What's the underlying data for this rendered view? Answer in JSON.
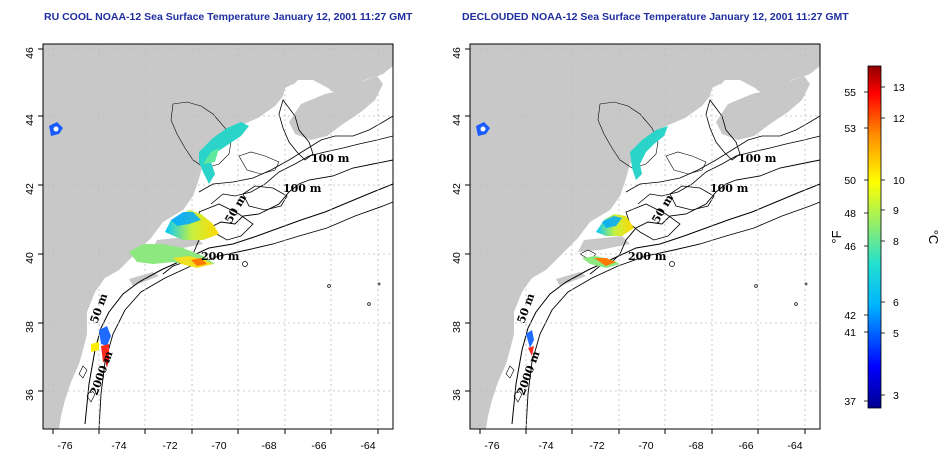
{
  "titles": {
    "left": "RU COOL NOAA-12 Sea Surface Temperature January 12, 2001 11:27 GMT",
    "right": "DECLOUDED NOAA-12 Sea Surface Temperature January 12, 2001 11:27 GMT"
  },
  "axes": {
    "lon_ticks": [
      "-76",
      "-74",
      "-72",
      "-70",
      "-68",
      "-66",
      "-64"
    ],
    "lat_ticks": [
      "36",
      "38",
      "40",
      "42",
      "44",
      "46"
    ]
  },
  "contour_labels": [
    "100 m",
    "100 m",
    "50 m",
    "200 m",
    "50 m",
    "2000 m"
  ],
  "colorbar": {
    "fahrenheit_unit": "°F",
    "celsius_unit": "°C",
    "fahrenheit_ticks": [
      "55",
      "53",
      "50",
      "48",
      "46",
      "42",
      "41",
      "37"
    ],
    "celsius_ticks": [
      "13",
      "12",
      "10",
      "9",
      "8",
      "6",
      "5",
      "3"
    ],
    "celsius_range": [
      2.5,
      13.5
    ]
  },
  "colors": {
    "land": "#c8c8c8",
    "ocean": "#ffffff",
    "title": "#1f2f9f",
    "grid": "#bdbdbd"
  }
}
